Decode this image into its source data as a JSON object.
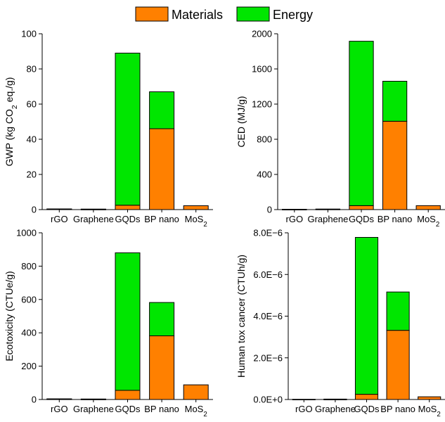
{
  "legend": {
    "items": [
      {
        "label": "Materials",
        "color": "#ff8000"
      },
      {
        "label": "Energy",
        "color": "#00e600"
      }
    ]
  },
  "colors": {
    "materials": "#ff8000",
    "energy": "#00e600",
    "outline": "#000000"
  },
  "chart_data": [
    {
      "type": "bar",
      "stacked": true,
      "ylabel": "GWP (kg CO₂ eq./g)",
      "categories": [
        "rGO",
        "Graphene",
        "GQDs",
        "BP nano",
        "MoS₂"
      ],
      "ylim": [
        0,
        100
      ],
      "yticks": [
        "0",
        "20",
        "40",
        "60",
        "80",
        "100"
      ],
      "ytick_values": [
        0,
        20,
        40,
        60,
        80,
        100
      ],
      "series": [
        {
          "name": "Materials",
          "values": [
            0.3,
            0.2,
            2.5,
            46,
            2.2
          ]
        },
        {
          "name": "Energy",
          "values": [
            0.1,
            0.1,
            86.5,
            21,
            0
          ]
        }
      ]
    },
    {
      "type": "bar",
      "stacked": true,
      "ylabel": "CED (MJ/g)",
      "categories": [
        "rGO",
        "Graphene",
        "GQDs",
        "BP nano",
        "MoS₂"
      ],
      "ylim": [
        0,
        2000
      ],
      "yticks": [
        "0",
        "400",
        "800",
        "1200",
        "1600",
        "2000"
      ],
      "ytick_values": [
        0,
        400,
        800,
        1200,
        1600,
        2000
      ],
      "series": [
        {
          "name": "Materials",
          "values": [
            3,
            5,
            45,
            1005,
            45
          ]
        },
        {
          "name": "Energy",
          "values": [
            1,
            1,
            1870,
            455,
            0
          ]
        }
      ]
    },
    {
      "type": "bar",
      "stacked": true,
      "ylabel": "Ecotoxicity (CTUe/g)",
      "categories": [
        "rGO",
        "Graphene",
        "GQDs",
        "BP nano",
        "MoS₂"
      ],
      "ylim": [
        0,
        1000
      ],
      "yticks": [
        "0",
        "200",
        "400",
        "600",
        "800",
        "1000"
      ],
      "ytick_values": [
        0,
        200,
        400,
        600,
        800,
        1000
      ],
      "series": [
        {
          "name": "Materials",
          "values": [
            3,
            2,
            55,
            382,
            88
          ]
        },
        {
          "name": "Energy",
          "values": [
            1,
            1,
            825,
            200,
            0
          ]
        }
      ]
    },
    {
      "type": "bar",
      "stacked": true,
      "ylabel": "Human tox cancer (CTUh/g)",
      "categories": [
        "rGO",
        "Graphene",
        "GQDs",
        "BP nano",
        "MoS₂"
      ],
      "ylim": [
        0,
        8e-06
      ],
      "yticks": [
        "0.0E+0",
        "2.0E−6",
        "4.0E−6",
        "6.0E−6",
        "8.0E−6"
      ],
      "ytick_values": [
        0,
        2e-06,
        4e-06,
        6e-06,
        8e-06
      ],
      "series": [
        {
          "name": "Materials",
          "values": [
            1e-08,
            1e-08,
            2.5e-07,
            3.32e-06,
            1.3e-07
          ]
        },
        {
          "name": "Energy",
          "values": [
            0,
            1e-08,
            7.53e-06,
            1.84e-06,
            0
          ]
        }
      ]
    }
  ]
}
